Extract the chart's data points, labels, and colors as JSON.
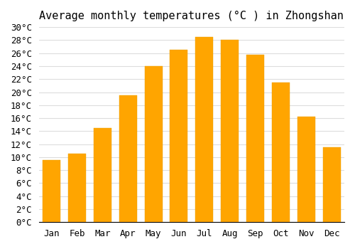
{
  "title": "Average monthly temperatures (°C ) in Zhongshan",
  "months": [
    "Jan",
    "Feb",
    "Mar",
    "Apr",
    "May",
    "Jun",
    "Jul",
    "Aug",
    "Sep",
    "Oct",
    "Nov",
    "Dec"
  ],
  "temperatures": [
    9.5,
    10.5,
    14.5,
    19.5,
    24.0,
    26.5,
    28.5,
    28.0,
    25.8,
    21.5,
    16.2,
    11.5
  ],
  "bar_color": "#FFA500",
  "bar_edge_color": "#E8A000",
  "ylim": [
    0,
    30
  ],
  "ytick_step": 2,
  "background_color": "#FFFFFF",
  "grid_color": "#DDDDDD",
  "title_fontsize": 11,
  "tick_fontsize": 9,
  "font_family": "monospace"
}
